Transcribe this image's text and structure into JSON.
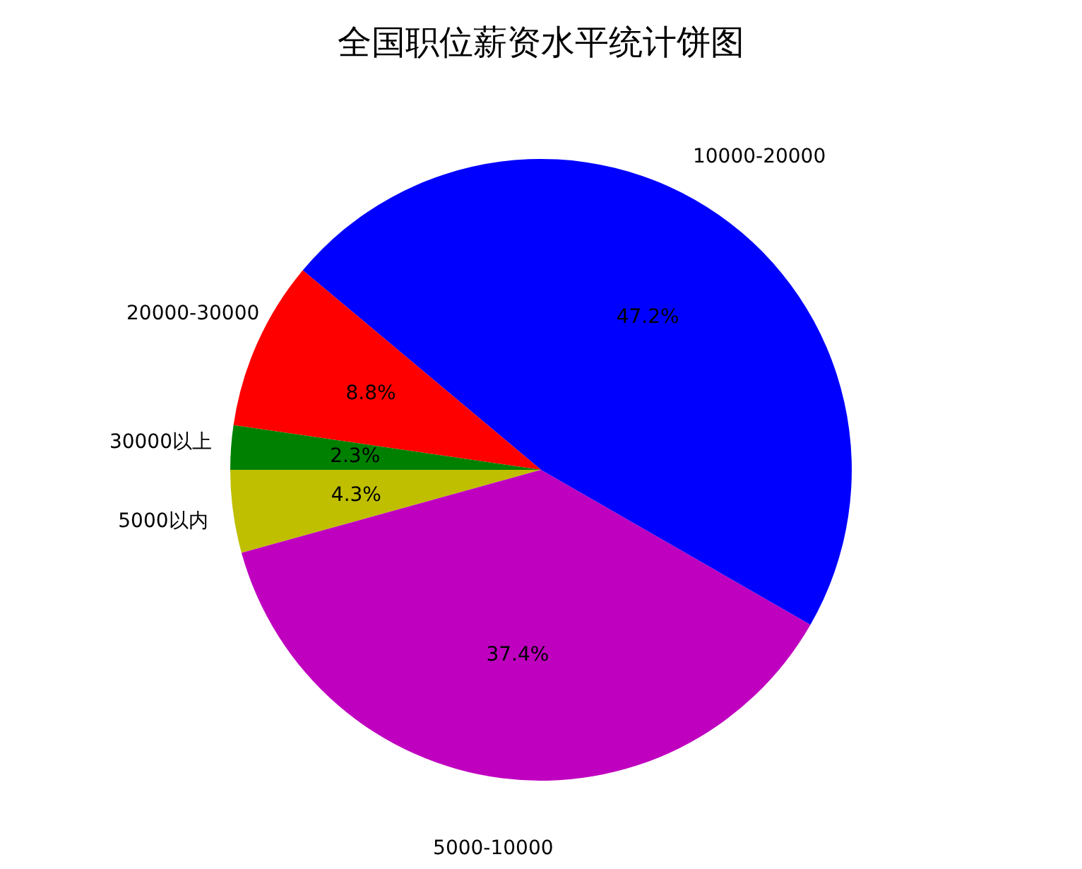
{
  "chart_data": {
    "type": "pie",
    "title": "全国职位薪资水平统计饼图",
    "categories": [
      "5000以内",
      "5000-10000",
      "10000-20000",
      "20000-30000",
      "30000以上"
    ],
    "values": [
      4.3,
      37.4,
      47.2,
      8.8,
      2.3
    ],
    "value_labels": [
      "4.3%",
      "37.4%",
      "47.2%",
      "8.8%",
      "2.3%"
    ],
    "colors": [
      "#bfbf00",
      "#bf00bf",
      "#0000ff",
      "#ff0000",
      "#008000"
    ],
    "legend": false
  }
}
